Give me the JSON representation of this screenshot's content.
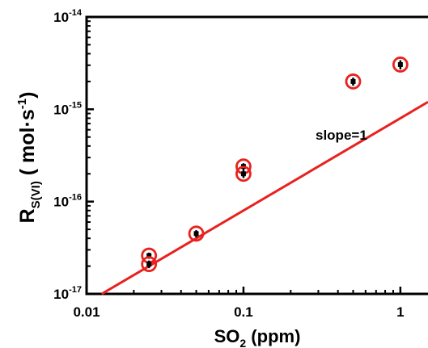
{
  "chart_data": {
    "type": "scatter",
    "x_scale": "log",
    "y_scale": "log",
    "xlim": [
      0.01,
      1.5
    ],
    "ylim": [
      1e-17,
      1e-14
    ],
    "x_ticks": [
      {
        "value": 0.01,
        "label": "0.01"
      },
      {
        "value": 0.1,
        "label": "0.1"
      },
      {
        "value": 1,
        "label": "1"
      }
    ],
    "y_ticks": [
      {
        "value": 1e-17,
        "base": "10",
        "exp": "-17"
      },
      {
        "value": 1e-16,
        "base": "10",
        "exp": "-16"
      },
      {
        "value": 1e-15,
        "base": "10",
        "exp": "-15"
      },
      {
        "value": 1e-14,
        "base": "10",
        "exp": "-14"
      }
    ],
    "xlabel": {
      "main": "SO",
      "sub": "2",
      "rest": " (ppm)"
    },
    "ylabel": {
      "main": "R",
      "sub": "S(VI)",
      "rest": " ( mol·s",
      "sup": "-1",
      "close": ")"
    },
    "annotation": "slope=1",
    "points": [
      {
        "x": 0.025,
        "y": 2.6e-17,
        "err": 2e-18
      },
      {
        "x": 0.025,
        "y": 2.1e-17,
        "err": 2e-18
      },
      {
        "x": 0.05,
        "y": 4.5e-17,
        "err": 4e-18
      },
      {
        "x": 0.1,
        "y": 2.4e-16,
        "err": 2e-17
      },
      {
        "x": 0.1,
        "y": 2e-16,
        "err": 2e-17
      },
      {
        "x": 0.5,
        "y": 2e-15,
        "err": 2e-16
      },
      {
        "x": 1.0,
        "y": 3.05e-15,
        "err": 3.5e-16
      }
    ],
    "fit_line": {
      "slope": 1,
      "x": [
        0.0125,
        1.5
      ],
      "y": [
        1e-17,
        1.2e-15
      ]
    },
    "colors": {
      "marker": "#e8221e",
      "fit": "#e8221e",
      "error_bar": "#000000",
      "axis": "#000000"
    }
  }
}
